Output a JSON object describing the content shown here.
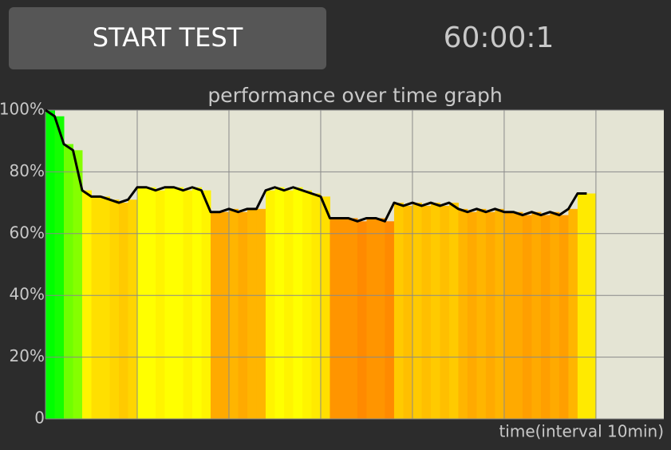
{
  "button": {
    "label": "START TEST"
  },
  "timer": "60:00:1",
  "chart_data": {
    "type": "bar-line",
    "title": "performance over time graph",
    "x_label": "time(interval 10min)",
    "x": [
      0,
      1,
      2,
      3,
      4,
      5,
      6,
      7,
      8,
      9,
      10,
      11,
      12,
      13,
      14,
      15,
      16,
      17,
      18,
      19,
      20,
      21,
      22,
      23,
      24,
      25,
      26,
      27,
      28,
      29,
      30,
      31,
      32,
      33,
      34,
      35,
      36,
      37,
      38,
      39,
      40,
      41,
      42,
      43,
      44,
      45,
      46,
      47,
      48,
      49,
      50,
      51,
      52,
      53,
      54,
      55,
      56,
      57,
      58,
      59
    ],
    "values": [
      100,
      98,
      89,
      87,
      74,
      72,
      72,
      71,
      70,
      71,
      75,
      75,
      74,
      75,
      75,
      74,
      75,
      74,
      67,
      67,
      68,
      67,
      68,
      68,
      74,
      75,
      74,
      75,
      74,
      73,
      72,
      65,
      65,
      65,
      64,
      65,
      65,
      64,
      70,
      69,
      70,
      69,
      70,
      69,
      70,
      68,
      67,
      68,
      67,
      68,
      67,
      67,
      66,
      67,
      66,
      67,
      66,
      68,
      73,
      73
    ],
    "line_color": "#000000",
    "xlim": [
      0,
      67.4
    ],
    "xticks": [
      0,
      10,
      20,
      30,
      40,
      50,
      60
    ],
    "ylim": [
      0,
      100
    ],
    "yticks": [
      0,
      {
        "value": 20,
        "label": "20%"
      },
      {
        "value": 40,
        "label": "40%"
      },
      {
        "value": 60,
        "label": "60%"
      },
      {
        "value": 80,
        "label": "80%"
      },
      {
        "value": 100,
        "label": "100%"
      }
    ],
    "grid": true
  }
}
